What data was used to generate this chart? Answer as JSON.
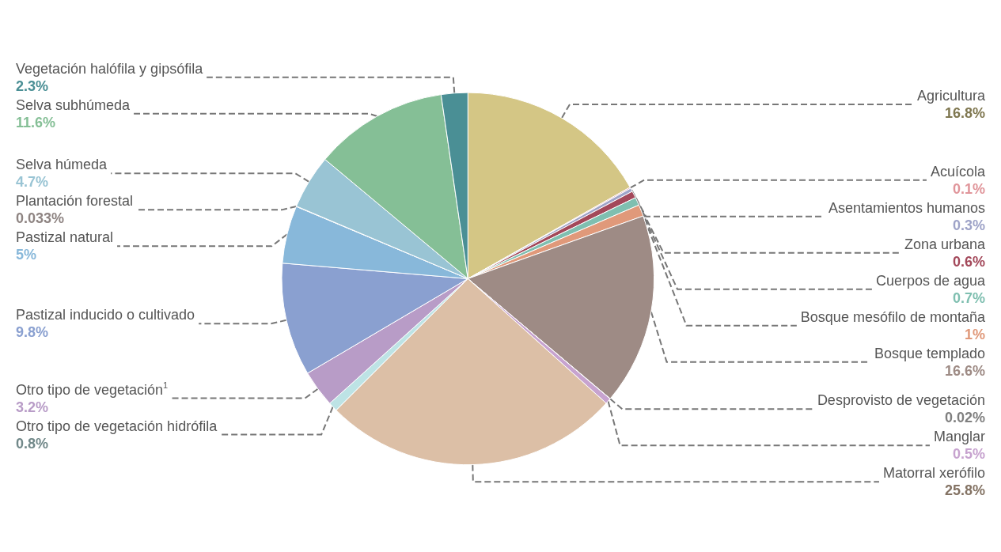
{
  "chart_data": {
    "type": "pie",
    "categories": [
      "Agricultura",
      "Acuícola",
      "Asentamientos humanos",
      "Zona urbana",
      "Cuerpos de agua",
      "Bosque mesófilo de montaña",
      "Bosque templado",
      "Desprovisto de vegetación",
      "Manglar",
      "Matorral xerófilo",
      "Otro tipo de vegetación hidrófila",
      "Otro tipo de vegetación$^{1}$",
      "Pastizal inducido o cultivado",
      "Pastizal natural",
      "Plantación forestal",
      "Selva húmeda",
      "Selva subhúmeda",
      "Vegetación halófila y gipsófila"
    ],
    "values": [
      16.8,
      0.1,
      0.3,
      0.6,
      0.7,
      1,
      16.6,
      0.02,
      0.5,
      25.8,
      0.8,
      3.2,
      9.8,
      5,
      0.033,
      4.7,
      11.6,
      2.3
    ],
    "value_labels": [
      "16.8%",
      "0.1%",
      "0.3%",
      "0.6%",
      "0.7%",
      "1%",
      "16.6%",
      "0.02%",
      "0.5%",
      "25.8%",
      "0.8%",
      "3.2%",
      "9.8%",
      "5%",
      "0.033%",
      "4.7%",
      "11.6%",
      "2.3%"
    ],
    "colors": [
      "#d4c685",
      "#e0959a",
      "#9ea3c8",
      "#a3485a",
      "#7fbfb0",
      "#e0997a",
      "#9e8b85",
      "#d3d3d3",
      "#c7a3cf",
      "#dcbfa6",
      "#bde3e5",
      "#b89cc7",
      "#8aa0d0",
      "#88b8da",
      "#ecdcd8",
      "#99c4d4",
      "#85bf96",
      "#4a8f95"
    ]
  }
}
